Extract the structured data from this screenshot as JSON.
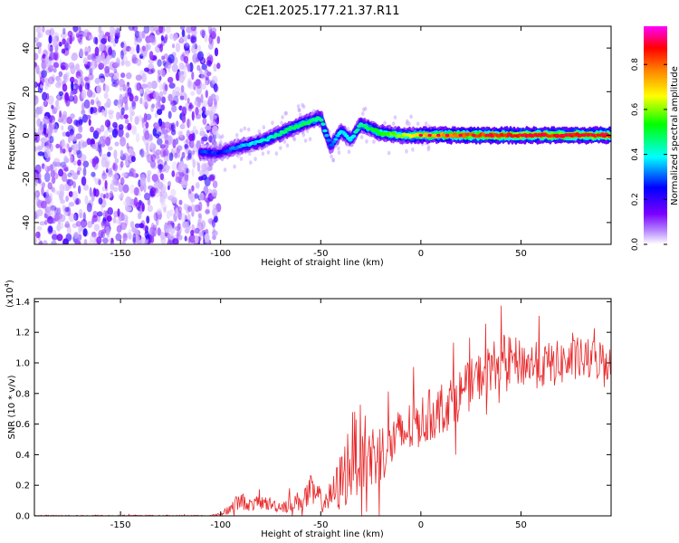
{
  "title": "C2E1.2025.177.21.37.R11",
  "chart_data": [
    {
      "type": "heatmap",
      "xlabel": "Height of straight line (km)",
      "ylabel": "Frequency (Hz)",
      "xlim": [
        -193,
        95
      ],
      "ylim": [
        -50,
        50
      ],
      "xticks": [
        -150,
        -100,
        -50,
        0,
        50
      ],
      "yticks": [
        -40,
        -20,
        0,
        20,
        40
      ],
      "colorbar": {
        "label": "Normalized spectral amplitude",
        "range": [
          0,
          0.97
        ],
        "ticks": [
          0.0,
          0.2,
          0.4,
          0.6,
          0.8
        ],
        "colormap": [
          "#ffffff",
          "#8a00ff",
          "#0000ff",
          "#00ffff",
          "#00ff00",
          "#ffff00",
          "#ff8000",
          "#ff0000",
          "#ff00ff"
        ]
      },
      "noise_region_x": [
        -193,
        -105
      ],
      "ridge": {
        "x": [
          -110,
          -100,
          -90,
          -80,
          -70,
          -60,
          -50,
          -45,
          -40,
          -35,
          -30,
          -25,
          -20,
          -10,
          0,
          10,
          20,
          40,
          60,
          80,
          95
        ],
        "y": [
          -8,
          -8,
          -5,
          -3,
          1,
          5,
          8,
          -5,
          2,
          -2,
          5,
          3,
          1,
          0,
          0,
          0,
          0,
          0,
          0,
          0,
          0
        ],
        "amplitude": [
          0.3,
          0.25,
          0.35,
          0.4,
          0.45,
          0.5,
          0.45,
          0.3,
          0.4,
          0.4,
          0.45,
          0.5,
          0.55,
          0.6,
          0.7,
          0.75,
          0.8,
          0.85,
          0.85,
          0.85,
          0.85
        ]
      },
      "grid": false
    },
    {
      "type": "line",
      "xlabel": "Height of straight line (km)",
      "ylabel": "SNR (10 * v/v)",
      "scale_label": "(x10",
      "scale_exponent": "4",
      "scale_suffix": ")",
      "xlim": [
        -193,
        95
      ],
      "ylim": [
        0,
        1.42
      ],
      "xticks": [
        -150,
        -100,
        -50,
        0,
        50
      ],
      "yticks": [
        0.0,
        0.2,
        0.4,
        0.6,
        0.8,
        1.0,
        1.2,
        1.4
      ],
      "series": [
        {
          "color": "#e8282a",
          "trend_x": [
            -193,
            -105,
            -100,
            -95,
            -90,
            -85,
            -80,
            -70,
            -60,
            -55,
            -50,
            -45,
            -40,
            -35,
            -30,
            -25,
            -20,
            -15,
            -10,
            -5,
            0,
            10,
            20,
            30,
            40,
            50,
            60,
            70,
            80,
            95
          ],
          "trend_y": [
            0.0,
            0.0,
            0.01,
            0.05,
            0.1,
            0.07,
            0.09,
            0.06,
            0.1,
            0.15,
            0.1,
            0.12,
            0.22,
            0.38,
            0.45,
            0.38,
            0.42,
            0.48,
            0.52,
            0.58,
            0.62,
            0.7,
            0.8,
            0.92,
            1.02,
            1.0,
            0.98,
            1.0,
            1.02,
            1.02
          ],
          "spread_y": [
            0.005,
            0.005,
            0.01,
            0.04,
            0.06,
            0.04,
            0.05,
            0.04,
            0.07,
            0.12,
            0.08,
            0.1,
            0.2,
            0.3,
            0.28,
            0.25,
            0.2,
            0.2,
            0.18,
            0.18,
            0.17,
            0.18,
            0.17,
            0.16,
            0.17,
            0.16,
            0.15,
            0.15,
            0.14,
            0.14
          ]
        }
      ],
      "grid": false
    }
  ]
}
